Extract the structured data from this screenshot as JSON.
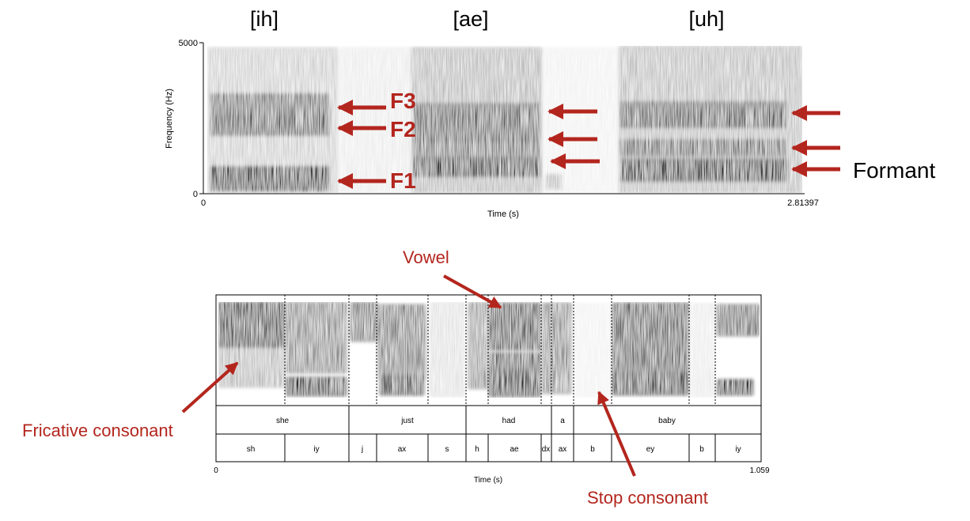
{
  "top": {
    "vowel_labels": [
      "[ih]",
      "[ae]",
      "[uh]"
    ],
    "y_axis_label": "Frequency (Hz)",
    "y_ticks": [
      "5000",
      "0"
    ],
    "x_axis_label": "Time (s)",
    "x_ticks": [
      "0",
      "2.81397"
    ],
    "formant_labels": [
      "F3",
      "F2",
      "F1"
    ],
    "formant_caption": "Formant"
  },
  "bottom": {
    "vowel_callout": "Vowel",
    "fricative_callout": "Fricative consonant",
    "stop_callout": "Stop consonant",
    "words": [
      "she",
      "just",
      "had",
      "a",
      "baby"
    ],
    "phones": [
      "sh",
      "iy",
      "j",
      "ax",
      "s",
      "h",
      "ae",
      "dx",
      "ax",
      "b",
      "ey",
      "b",
      "iy"
    ],
    "x_axis_label": "Time (s)",
    "x_ticks": [
      "0",
      "1.059"
    ]
  },
  "colors": {
    "annotation": "#b3261e",
    "axis": "#000000",
    "spectrogram_dark": "#1a1a1a"
  }
}
